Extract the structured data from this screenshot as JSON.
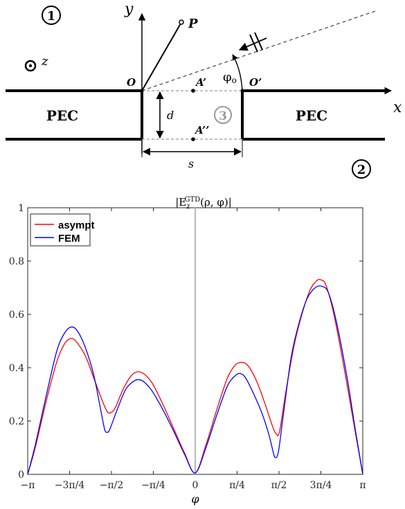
{
  "diagram": {
    "region_1": "1",
    "region_2": "2",
    "region_3": "3",
    "z_label": "z",
    "y_label": "y",
    "x_label": "x",
    "p_label": "P",
    "o_label": "O",
    "o_prime_label": "O’",
    "a_prime_label": "A’",
    "a_dblprime_label": "A’’",
    "phi0_label": "φ",
    "phi0_sub": "o",
    "d_label": "d",
    "s_label": "s",
    "pec_left": "PEC",
    "pec_right": "PEC"
  },
  "chart_data": {
    "type": "line",
    "title_parts": {
      "base": "|E",
      "sub": "z",
      "sup": "GTD",
      "rest": "(ρ, φ)|"
    },
    "xlabel": "φ",
    "ylabel": "",
    "xlim": [
      -3.14159,
      3.14159
    ],
    "ylim": [
      0,
      1
    ],
    "xticks": [
      {
        "value": -3.14159,
        "label": "−π"
      },
      {
        "value": -2.35619,
        "label": "−3π/4"
      },
      {
        "value": -1.5708,
        "label": "−π/2"
      },
      {
        "value": -0.7854,
        "label": "−π/4"
      },
      {
        "value": 0,
        "label": "0"
      },
      {
        "value": 0.7854,
        "label": "π/4"
      },
      {
        "value": 1.5708,
        "label": "π/2"
      },
      {
        "value": 2.35619,
        "label": "3π/4"
      },
      {
        "value": 3.14159,
        "label": "π"
      }
    ],
    "yticks": [
      {
        "value": 0,
        "label": "0"
      },
      {
        "value": 0.2,
        "label": "0.2"
      },
      {
        "value": 0.4,
        "label": "0.4"
      },
      {
        "value": 0.6,
        "label": "0.6"
      },
      {
        "value": 0.8,
        "label": "0.8"
      },
      {
        "value": 1,
        "label": "1"
      }
    ],
    "vline_x": 0,
    "legend_position": "top-left",
    "series": [
      {
        "name": "asympt",
        "color": "#ff0000",
        "points": [
          [
            -3.1416,
            0.0
          ],
          [
            -3.0,
            0.1
          ],
          [
            -2.8,
            0.27
          ],
          [
            -2.6,
            0.42
          ],
          [
            -2.45,
            0.49
          ],
          [
            -2.32,
            0.51
          ],
          [
            -2.2,
            0.49
          ],
          [
            -2.05,
            0.44
          ],
          [
            -1.9,
            0.36
          ],
          [
            -1.75,
            0.28
          ],
          [
            -1.65,
            0.235
          ],
          [
            -1.58,
            0.232
          ],
          [
            -1.5,
            0.25
          ],
          [
            -1.35,
            0.32
          ],
          [
            -1.2,
            0.37
          ],
          [
            -1.08,
            0.385
          ],
          [
            -0.95,
            0.375
          ],
          [
            -0.8,
            0.34
          ],
          [
            -0.6,
            0.26
          ],
          [
            -0.4,
            0.17
          ],
          [
            -0.2,
            0.08
          ],
          [
            0.0,
            0.005
          ],
          [
            0.2,
            0.11
          ],
          [
            0.4,
            0.24
          ],
          [
            0.6,
            0.36
          ],
          [
            0.75,
            0.41
          ],
          [
            0.88,
            0.42
          ],
          [
            1.0,
            0.405
          ],
          [
            1.15,
            0.35
          ],
          [
            1.3,
            0.27
          ],
          [
            1.45,
            0.18
          ],
          [
            1.52,
            0.152
          ],
          [
            1.58,
            0.16
          ],
          [
            1.7,
            0.31
          ],
          [
            1.85,
            0.48
          ],
          [
            2.0,
            0.6
          ],
          [
            2.15,
            0.69
          ],
          [
            2.27,
            0.725
          ],
          [
            2.35,
            0.73
          ],
          [
            2.45,
            0.71
          ],
          [
            2.6,
            0.6
          ],
          [
            2.8,
            0.39
          ],
          [
            3.0,
            0.16
          ],
          [
            3.1416,
            0.0
          ]
        ]
      },
      {
        "name": "FEM",
        "color": "#0000ff",
        "points": [
          [
            -3.1416,
            0.0
          ],
          [
            -3.0,
            0.11
          ],
          [
            -2.8,
            0.29
          ],
          [
            -2.6,
            0.46
          ],
          [
            -2.45,
            0.53
          ],
          [
            -2.32,
            0.553
          ],
          [
            -2.2,
            0.535
          ],
          [
            -2.05,
            0.47
          ],
          [
            -1.9,
            0.37
          ],
          [
            -1.78,
            0.25
          ],
          [
            -1.7,
            0.17
          ],
          [
            -1.65,
            0.158
          ],
          [
            -1.6,
            0.17
          ],
          [
            -1.45,
            0.25
          ],
          [
            -1.3,
            0.32
          ],
          [
            -1.15,
            0.35
          ],
          [
            -1.05,
            0.355
          ],
          [
            -0.95,
            0.345
          ],
          [
            -0.8,
            0.31
          ],
          [
            -0.6,
            0.24
          ],
          [
            -0.4,
            0.16
          ],
          [
            -0.2,
            0.075
          ],
          [
            0.0,
            0.005
          ],
          [
            0.2,
            0.1
          ],
          [
            0.4,
            0.22
          ],
          [
            0.6,
            0.33
          ],
          [
            0.75,
            0.37
          ],
          [
            0.85,
            0.378
          ],
          [
            0.95,
            0.36
          ],
          [
            1.1,
            0.3
          ],
          [
            1.25,
            0.23
          ],
          [
            1.38,
            0.15
          ],
          [
            1.46,
            0.085
          ],
          [
            1.5,
            0.063
          ],
          [
            1.56,
            0.085
          ],
          [
            1.65,
            0.22
          ],
          [
            1.8,
            0.44
          ],
          [
            1.95,
            0.57
          ],
          [
            2.1,
            0.66
          ],
          [
            2.25,
            0.7
          ],
          [
            2.38,
            0.705
          ],
          [
            2.5,
            0.68
          ],
          [
            2.65,
            0.57
          ],
          [
            2.85,
            0.36
          ],
          [
            3.0,
            0.17
          ],
          [
            3.1416,
            0.0
          ]
        ]
      }
    ]
  }
}
